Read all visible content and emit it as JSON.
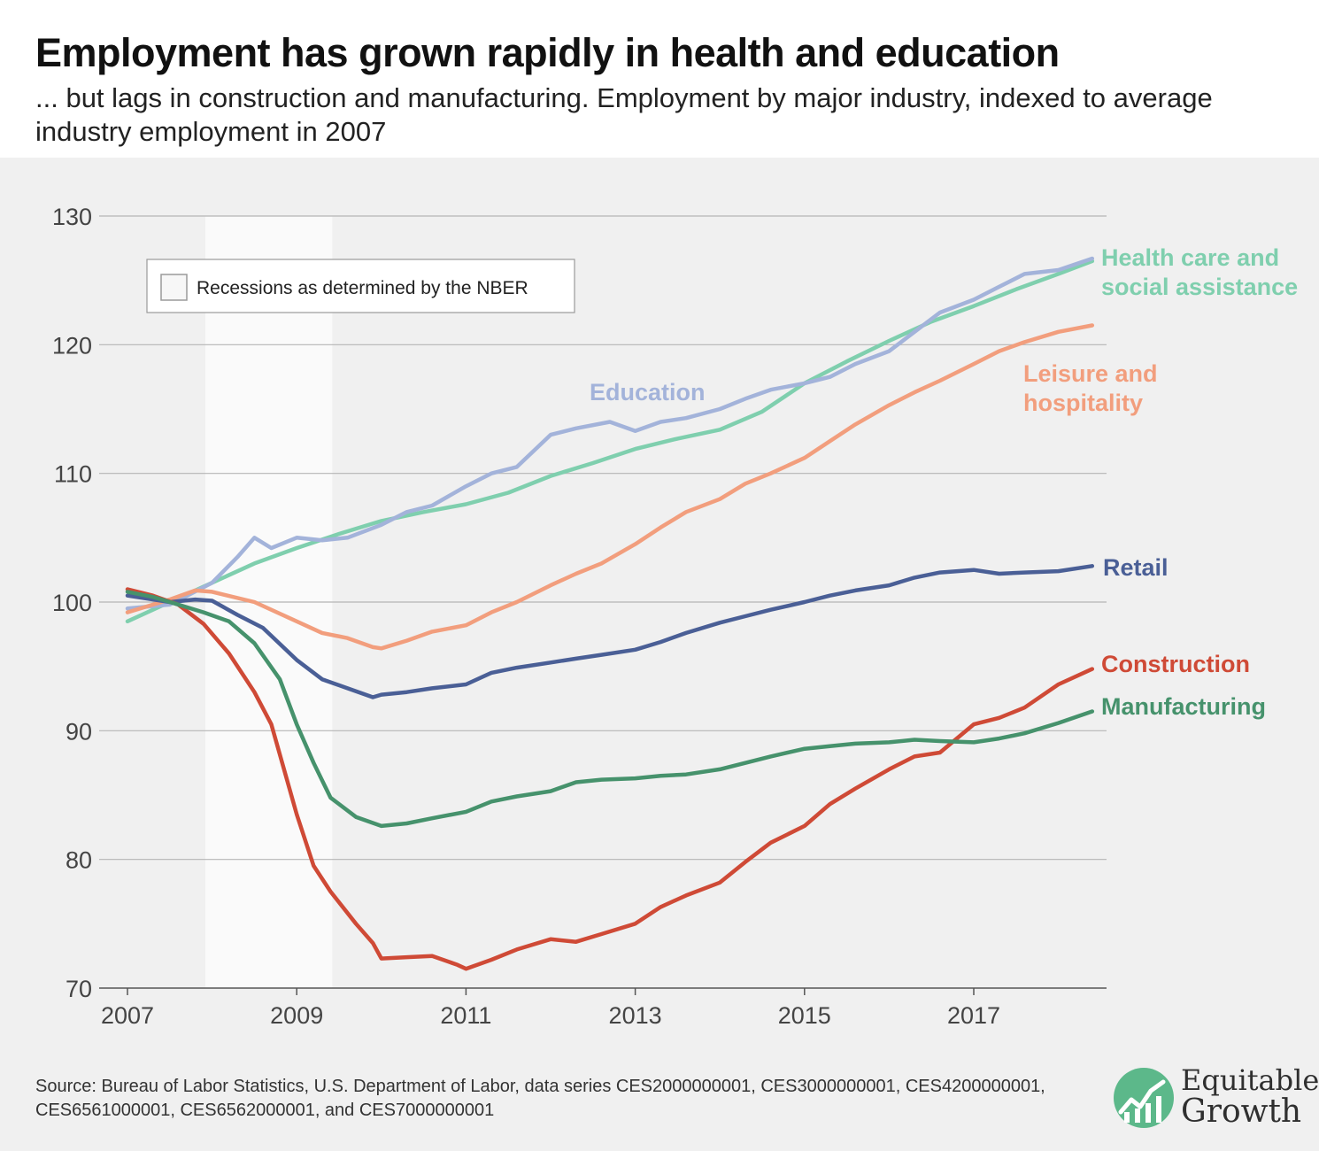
{
  "title": "Employment has grown rapidly in health and education",
  "subtitle": "... but lags in construction and manufacturing. Employment by major industry, indexed to average industry employment in 2007",
  "source": "Source: Bureau of Labor Statistics, U.S. Department of Labor, data series CES2000000001, CES3000000001, CES4200000001, CES6561000001, CES6562000001, and CES7000000001",
  "logo": {
    "line1": "Equitable",
    "line2": "Growth",
    "accent": "#5cb88a"
  },
  "colors": {
    "health": "#7fcfae",
    "education": "#a3b3da",
    "leisure": "#f29e7d",
    "retail": "#4a5f96",
    "construction": "#cf4a36",
    "manufacturing": "#46926c"
  },
  "chart_data": {
    "type": "line",
    "xlim": [
      2007,
      2018.5
    ],
    "ylim": [
      70,
      130
    ],
    "y_ticks": [
      "70",
      "80",
      "90",
      "100",
      "110",
      "120",
      "130"
    ],
    "x_ticks": [
      "2007",
      "2009",
      "2011",
      "2013",
      "2015",
      "2017"
    ],
    "grid": true,
    "recession": {
      "start": 2007.92,
      "end": 2009.42,
      "legend_label": "Recessions as determined by the NBER"
    },
    "series": [
      {
        "key": "health",
        "name": "Health care and social assistance",
        "label_lines": [
          "Health care and",
          "social assistance"
        ],
        "x": [
          2007,
          2007.5,
          2008,
          2008.5,
          2009,
          2009.5,
          2010,
          2010.5,
          2011,
          2011.5,
          2012,
          2012.5,
          2013,
          2013.5,
          2014,
          2014.5,
          2015,
          2015.5,
          2016,
          2016.5,
          2017,
          2017.5,
          2018,
          2018.4
        ],
        "y": [
          98.5,
          100,
          101.5,
          103,
          104.2,
          105.3,
          106.3,
          107,
          107.6,
          108.5,
          109.8,
          110.8,
          111.9,
          112.7,
          113.4,
          114.8,
          117,
          118.7,
          120.3,
          121.8,
          123,
          124.3,
          125.5,
          126.5
        ]
      },
      {
        "key": "education",
        "name": "Education",
        "label_lines": [
          "Education"
        ],
        "x": [
          2007,
          2007.5,
          2008,
          2008.3,
          2008.5,
          2008.7,
          2009,
          2009.3,
          2009.6,
          2010,
          2010.3,
          2010.6,
          2011,
          2011.3,
          2011.6,
          2012,
          2012.3,
          2012.7,
          2013,
          2013.3,
          2013.6,
          2014,
          2014.3,
          2014.6,
          2015,
          2015.3,
          2015.6,
          2016,
          2016.3,
          2016.6,
          2017,
          2017.3,
          2017.6,
          2018,
          2018.4
        ],
        "y": [
          99.5,
          99.8,
          101.5,
          103.5,
          105,
          104.2,
          105,
          104.8,
          105,
          106,
          107,
          107.5,
          109,
          110,
          110.5,
          113,
          113.5,
          114,
          113.3,
          114,
          114.3,
          115,
          115.8,
          116.5,
          117,
          117.5,
          118.5,
          119.5,
          121,
          122.5,
          123.5,
          124.5,
          125.5,
          125.8,
          126.7
        ]
      },
      {
        "key": "leisure",
        "name": "Leisure and hospitality",
        "label_lines": [
          "Leisure and",
          "hospitality"
        ],
        "x": [
          2007,
          2007.5,
          2007.8,
          2008,
          2008.5,
          2009,
          2009.3,
          2009.6,
          2009.9,
          2010,
          2010.3,
          2010.6,
          2011,
          2011.3,
          2011.6,
          2012,
          2012.3,
          2012.6,
          2013,
          2013.3,
          2013.6,
          2014,
          2014.3,
          2014.6,
          2015,
          2015.3,
          2015.6,
          2016,
          2016.3,
          2016.6,
          2017,
          2017.3,
          2017.6,
          2018,
          2018.4
        ],
        "y": [
          99.2,
          100.2,
          100.9,
          100.8,
          100,
          98.5,
          97.6,
          97.2,
          96.5,
          96.4,
          97,
          97.7,
          98.2,
          99.2,
          100,
          101.3,
          102.2,
          103,
          104.5,
          105.8,
          107,
          108,
          109.2,
          110,
          111.2,
          112.5,
          113.8,
          115.3,
          116.3,
          117.2,
          118.5,
          119.5,
          120.2,
          121,
          121.5
        ]
      },
      {
        "key": "retail",
        "name": "Retail",
        "label_lines": [
          "Retail"
        ],
        "x": [
          2007,
          2007.5,
          2007.8,
          2008,
          2008.3,
          2008.6,
          2009,
          2009.3,
          2009.6,
          2009.9,
          2010,
          2010.3,
          2010.6,
          2011,
          2011.3,
          2011.6,
          2012,
          2012.3,
          2012.6,
          2013,
          2013.3,
          2013.6,
          2014,
          2014.3,
          2014.6,
          2015,
          2015.3,
          2015.6,
          2016,
          2016.3,
          2016.6,
          2017,
          2017.3,
          2017.6,
          2018,
          2018.4
        ],
        "y": [
          100.5,
          100,
          100.2,
          100.1,
          99,
          98,
          95.5,
          94,
          93.3,
          92.6,
          92.8,
          93,
          93.3,
          93.6,
          94.5,
          94.9,
          95.3,
          95.6,
          95.9,
          96.3,
          96.9,
          97.6,
          98.4,
          98.9,
          99.4,
          100,
          100.5,
          100.9,
          101.3,
          101.9,
          102.3,
          102.5,
          102.2,
          102.3,
          102.4,
          102.8
        ]
      },
      {
        "key": "construction",
        "name": "Construction",
        "label_lines": [
          "Construction"
        ],
        "x": [
          2007,
          2007.3,
          2007.6,
          2007.9,
          2008.2,
          2008.5,
          2008.7,
          2009,
          2009.2,
          2009.4,
          2009.7,
          2009.9,
          2010,
          2010.3,
          2010.6,
          2010.9,
          2011,
          2011.3,
          2011.6,
          2012,
          2012.3,
          2012.6,
          2013,
          2013.3,
          2013.6,
          2014,
          2014.3,
          2014.6,
          2015,
          2015.3,
          2015.6,
          2016,
          2016.3,
          2016.6,
          2017,
          2017.3,
          2017.6,
          2018,
          2018.4
        ],
        "y": [
          101,
          100.5,
          99.8,
          98.3,
          96,
          93,
          90.5,
          83.5,
          79.5,
          77.5,
          75,
          73.5,
          72.3,
          72.4,
          72.5,
          71.8,
          71.5,
          72.2,
          73,
          73.8,
          73.6,
          74.2,
          75,
          76.3,
          77.2,
          78.2,
          79.8,
          81.3,
          82.6,
          84.3,
          85.5,
          87,
          88,
          88.3,
          90.5,
          91,
          91.8,
          93.6,
          94.8
        ]
      },
      {
        "key": "manufacturing",
        "name": "Manufacturing",
        "label_lines": [
          "Manufacturing"
        ],
        "x": [
          2007,
          2007.3,
          2007.6,
          2007.9,
          2008.2,
          2008.5,
          2008.8,
          2009,
          2009.2,
          2009.4,
          2009.7,
          2010,
          2010.3,
          2010.6,
          2011,
          2011.3,
          2011.6,
          2012,
          2012.3,
          2012.6,
          2013,
          2013.3,
          2013.6,
          2014,
          2014.3,
          2014.6,
          2015,
          2015.3,
          2015.6,
          2016,
          2016.3,
          2016.6,
          2017,
          2017.3,
          2017.6,
          2018,
          2018.4
        ],
        "y": [
          100.8,
          100.4,
          99.8,
          99.2,
          98.5,
          96.8,
          94,
          90.5,
          87.5,
          84.8,
          83.3,
          82.6,
          82.8,
          83.2,
          83.7,
          84.5,
          84.9,
          85.3,
          86,
          86.2,
          86.3,
          86.5,
          86.6,
          87,
          87.5,
          88,
          88.6,
          88.8,
          89,
          89.1,
          89.3,
          89.2,
          89.1,
          89.4,
          89.8,
          90.6,
          91.5
        ]
      }
    ]
  }
}
